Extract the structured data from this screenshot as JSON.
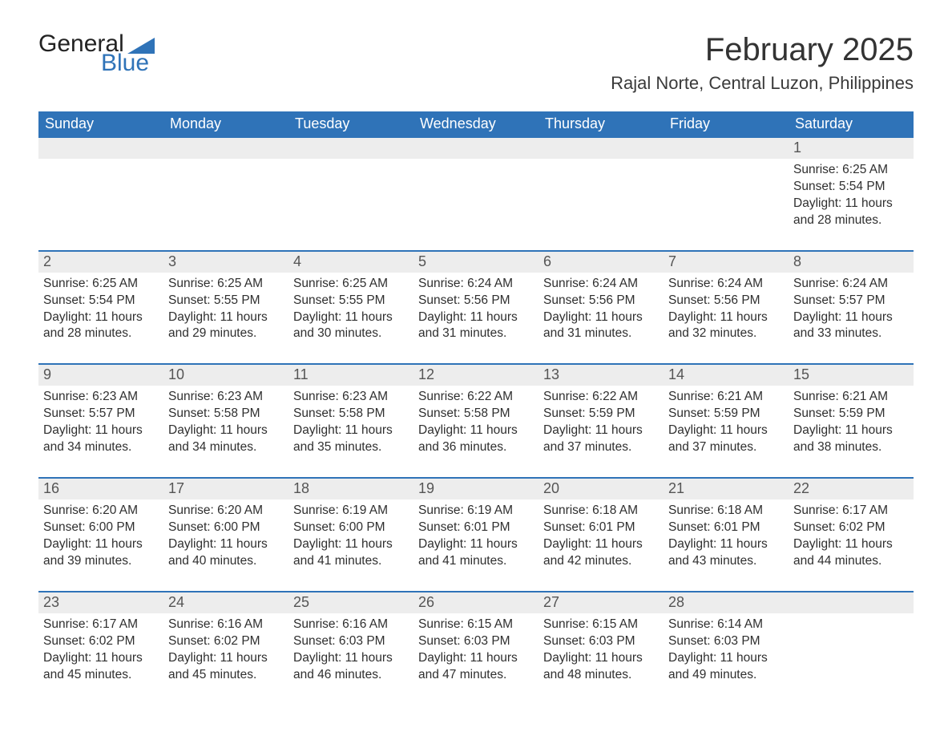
{
  "logo": {
    "word1": "General",
    "word2": "Blue",
    "word1_color": "#222222",
    "word2_color": "#2f73b8",
    "tri_color": "#2f73b8"
  },
  "title": "February 2025",
  "location": "Rajal Norte, Central Luzon, Philippines",
  "colors": {
    "header_bg": "#2f73b8",
    "header_text": "#ffffff",
    "daynum_bg": "#ededed",
    "week_border": "#2f73b8",
    "body_text": "#333333"
  },
  "typography": {
    "title_fontsize": 40,
    "location_fontsize": 22,
    "weekday_fontsize": 18,
    "daynum_fontsize": 18,
    "cell_fontsize": 15.5
  },
  "layout": {
    "columns": 7,
    "rows": 5,
    "first_day_column": 6
  },
  "weekdays": [
    "Sunday",
    "Monday",
    "Tuesday",
    "Wednesday",
    "Thursday",
    "Friday",
    "Saturday"
  ],
  "weeks": [
    [
      {
        "day": "",
        "sunrise": "",
        "sunset": "",
        "daylight1": "",
        "daylight2": ""
      },
      {
        "day": "",
        "sunrise": "",
        "sunset": "",
        "daylight1": "",
        "daylight2": ""
      },
      {
        "day": "",
        "sunrise": "",
        "sunset": "",
        "daylight1": "",
        "daylight2": ""
      },
      {
        "day": "",
        "sunrise": "",
        "sunset": "",
        "daylight1": "",
        "daylight2": ""
      },
      {
        "day": "",
        "sunrise": "",
        "sunset": "",
        "daylight1": "",
        "daylight2": ""
      },
      {
        "day": "",
        "sunrise": "",
        "sunset": "",
        "daylight1": "",
        "daylight2": ""
      },
      {
        "day": "1",
        "sunrise": "Sunrise: 6:25 AM",
        "sunset": "Sunset: 5:54 PM",
        "daylight1": "Daylight: 11 hours",
        "daylight2": "and 28 minutes."
      }
    ],
    [
      {
        "day": "2",
        "sunrise": "Sunrise: 6:25 AM",
        "sunset": "Sunset: 5:54 PM",
        "daylight1": "Daylight: 11 hours",
        "daylight2": "and 28 minutes."
      },
      {
        "day": "3",
        "sunrise": "Sunrise: 6:25 AM",
        "sunset": "Sunset: 5:55 PM",
        "daylight1": "Daylight: 11 hours",
        "daylight2": "and 29 minutes."
      },
      {
        "day": "4",
        "sunrise": "Sunrise: 6:25 AM",
        "sunset": "Sunset: 5:55 PM",
        "daylight1": "Daylight: 11 hours",
        "daylight2": "and 30 minutes."
      },
      {
        "day": "5",
        "sunrise": "Sunrise: 6:24 AM",
        "sunset": "Sunset: 5:56 PM",
        "daylight1": "Daylight: 11 hours",
        "daylight2": "and 31 minutes."
      },
      {
        "day": "6",
        "sunrise": "Sunrise: 6:24 AM",
        "sunset": "Sunset: 5:56 PM",
        "daylight1": "Daylight: 11 hours",
        "daylight2": "and 31 minutes."
      },
      {
        "day": "7",
        "sunrise": "Sunrise: 6:24 AM",
        "sunset": "Sunset: 5:56 PM",
        "daylight1": "Daylight: 11 hours",
        "daylight2": "and 32 minutes."
      },
      {
        "day": "8",
        "sunrise": "Sunrise: 6:24 AM",
        "sunset": "Sunset: 5:57 PM",
        "daylight1": "Daylight: 11 hours",
        "daylight2": "and 33 minutes."
      }
    ],
    [
      {
        "day": "9",
        "sunrise": "Sunrise: 6:23 AM",
        "sunset": "Sunset: 5:57 PM",
        "daylight1": "Daylight: 11 hours",
        "daylight2": "and 34 minutes."
      },
      {
        "day": "10",
        "sunrise": "Sunrise: 6:23 AM",
        "sunset": "Sunset: 5:58 PM",
        "daylight1": "Daylight: 11 hours",
        "daylight2": "and 34 minutes."
      },
      {
        "day": "11",
        "sunrise": "Sunrise: 6:23 AM",
        "sunset": "Sunset: 5:58 PM",
        "daylight1": "Daylight: 11 hours",
        "daylight2": "and 35 minutes."
      },
      {
        "day": "12",
        "sunrise": "Sunrise: 6:22 AM",
        "sunset": "Sunset: 5:58 PM",
        "daylight1": "Daylight: 11 hours",
        "daylight2": "and 36 minutes."
      },
      {
        "day": "13",
        "sunrise": "Sunrise: 6:22 AM",
        "sunset": "Sunset: 5:59 PM",
        "daylight1": "Daylight: 11 hours",
        "daylight2": "and 37 minutes."
      },
      {
        "day": "14",
        "sunrise": "Sunrise: 6:21 AM",
        "sunset": "Sunset: 5:59 PM",
        "daylight1": "Daylight: 11 hours",
        "daylight2": "and 37 minutes."
      },
      {
        "day": "15",
        "sunrise": "Sunrise: 6:21 AM",
        "sunset": "Sunset: 5:59 PM",
        "daylight1": "Daylight: 11 hours",
        "daylight2": "and 38 minutes."
      }
    ],
    [
      {
        "day": "16",
        "sunrise": "Sunrise: 6:20 AM",
        "sunset": "Sunset: 6:00 PM",
        "daylight1": "Daylight: 11 hours",
        "daylight2": "and 39 minutes."
      },
      {
        "day": "17",
        "sunrise": "Sunrise: 6:20 AM",
        "sunset": "Sunset: 6:00 PM",
        "daylight1": "Daylight: 11 hours",
        "daylight2": "and 40 minutes."
      },
      {
        "day": "18",
        "sunrise": "Sunrise: 6:19 AM",
        "sunset": "Sunset: 6:00 PM",
        "daylight1": "Daylight: 11 hours",
        "daylight2": "and 41 minutes."
      },
      {
        "day": "19",
        "sunrise": "Sunrise: 6:19 AM",
        "sunset": "Sunset: 6:01 PM",
        "daylight1": "Daylight: 11 hours",
        "daylight2": "and 41 minutes."
      },
      {
        "day": "20",
        "sunrise": "Sunrise: 6:18 AM",
        "sunset": "Sunset: 6:01 PM",
        "daylight1": "Daylight: 11 hours",
        "daylight2": "and 42 minutes."
      },
      {
        "day": "21",
        "sunrise": "Sunrise: 6:18 AM",
        "sunset": "Sunset: 6:01 PM",
        "daylight1": "Daylight: 11 hours",
        "daylight2": "and 43 minutes."
      },
      {
        "day": "22",
        "sunrise": "Sunrise: 6:17 AM",
        "sunset": "Sunset: 6:02 PM",
        "daylight1": "Daylight: 11 hours",
        "daylight2": "and 44 minutes."
      }
    ],
    [
      {
        "day": "23",
        "sunrise": "Sunrise: 6:17 AM",
        "sunset": "Sunset: 6:02 PM",
        "daylight1": "Daylight: 11 hours",
        "daylight2": "and 45 minutes."
      },
      {
        "day": "24",
        "sunrise": "Sunrise: 6:16 AM",
        "sunset": "Sunset: 6:02 PM",
        "daylight1": "Daylight: 11 hours",
        "daylight2": "and 45 minutes."
      },
      {
        "day": "25",
        "sunrise": "Sunrise: 6:16 AM",
        "sunset": "Sunset: 6:03 PM",
        "daylight1": "Daylight: 11 hours",
        "daylight2": "and 46 minutes."
      },
      {
        "day": "26",
        "sunrise": "Sunrise: 6:15 AM",
        "sunset": "Sunset: 6:03 PM",
        "daylight1": "Daylight: 11 hours",
        "daylight2": "and 47 minutes."
      },
      {
        "day": "27",
        "sunrise": "Sunrise: 6:15 AM",
        "sunset": "Sunset: 6:03 PM",
        "daylight1": "Daylight: 11 hours",
        "daylight2": "and 48 minutes."
      },
      {
        "day": "28",
        "sunrise": "Sunrise: 6:14 AM",
        "sunset": "Sunset: 6:03 PM",
        "daylight1": "Daylight: 11 hours",
        "daylight2": "and 49 minutes."
      },
      {
        "day": "",
        "sunrise": "",
        "sunset": "",
        "daylight1": "",
        "daylight2": ""
      }
    ]
  ]
}
